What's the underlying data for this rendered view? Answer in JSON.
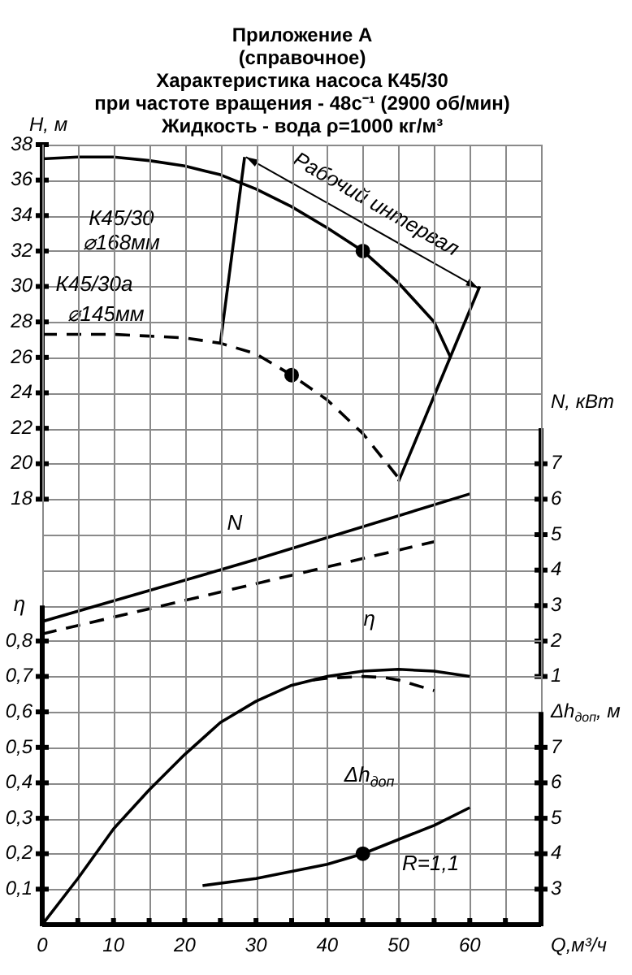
{
  "chart_data": [
    {
      "type": "line",
      "title": "Приложение А\n(справочное)\nХарактеристика насоса К45/30\nпри частоте вращения - 48с⁻¹ (2900 об/мин)\nЖидкость - вода ρ=1000 кг/м³",
      "ylabel": "H, м",
      "y2label": "N, кВт",
      "xlim": [
        0,
        70
      ],
      "xticks": [
        0,
        10,
        20,
        30,
        40,
        50,
        60
      ],
      "ylim": [
        8,
        38
      ],
      "yticks": [
        18,
        20,
        22,
        24,
        26,
        28,
        30,
        32,
        34,
        36,
        38
      ],
      "y2lim": [
        1,
        16
      ],
      "y2ticks": [
        1,
        2,
        3,
        4,
        5,
        6,
        7
      ],
      "tick_labels": "y",
      "grid": true,
      "series": [
        {
          "type": "line",
          "color": "#000000",
          "line_style": "solid",
          "x": [
            0,
            5,
            10,
            15,
            20,
            25,
            30,
            35,
            40,
            45,
            50,
            55,
            57.3
          ],
          "values": [
            37.2,
            37.3,
            37.3,
            37.1,
            36.8,
            36.3,
            35.5,
            34.5,
            33.3,
            32,
            30.2,
            28,
            26
          ]
        },
        {
          "type": "line",
          "color": "#000000",
          "line_style": "dashed",
          "x": [
            0,
            5,
            10,
            15,
            20,
            25,
            30,
            35,
            40,
            45,
            50
          ],
          "values": [
            27.3,
            27.3,
            27.3,
            27.2,
            27.1,
            26.8,
            26.2,
            25,
            23.6,
            21.7,
            19.2
          ]
        },
        {
          "type": "line",
          "color": "#000000",
          "line_style": "solid",
          "x": [
            25,
            28.4
          ],
          "values": [
            26.8,
            37.3
          ]
        },
        {
          "type": "line",
          "color": "#000000",
          "line_style": "solid",
          "x": [
            50,
            61.4
          ],
          "values": [
            19,
            30
          ]
        },
        {
          "type": "line",
          "axis": "y2",
          "color": "#000000",
          "line_style": "solid",
          "x": [
            0,
            30,
            60
          ],
          "values": [
            2.55,
            4.3,
            6.15
          ]
        },
        {
          "type": "line",
          "axis": "y2",
          "color": "#000000",
          "line_style": "dashed",
          "x": [
            0,
            55
          ],
          "values": [
            2.2,
            4.8
          ]
        },
        {
          "type": "scatter",
          "color": "#000000",
          "marker": "circle",
          "x": [
            45,
            35
          ],
          "values": [
            32,
            25
          ]
        }
      ],
      "annotations": [
        "К45/30",
        "⌀168мм",
        "К45/30а",
        "⌀145мм",
        "Рабочий интервал",
        "N"
      ]
    },
    {
      "type": "line",
      "xlabel": "Q,м³/ч",
      "ylabel": "η",
      "y2label": "Δh$_{доп}$, м",
      "xlim": [
        0,
        70
      ],
      "xticks": [
        0,
        {
          "value": 5,
          "label": null
        },
        10,
        {
          "value": 15,
          "label": null
        },
        20,
        {
          "value": 25,
          "label": null
        },
        30,
        {
          "value": 35,
          "label": null
        },
        40,
        {
          "value": 45,
          "label": null
        },
        50,
        {
          "value": 55,
          "label": null
        },
        60,
        {
          "value": 65,
          "label": null
        },
        {
          "value": 70,
          "label": null
        }
      ],
      "ylim": [
        0,
        2.2
      ],
      "yticks": [
        {
          "value": 0.1,
          "label": "0,1"
        },
        {
          "value": 0.2,
          "label": "0,2"
        },
        {
          "value": 0.3,
          "label": "0,3"
        },
        {
          "value": 0.4,
          "label": "0,4"
        },
        {
          "value": 0.5,
          "label": "0,5"
        },
        {
          "value": 0.6,
          "label": "0,6"
        },
        {
          "value": 0.7,
          "label": "0,7"
        },
        {
          "value": 0.8,
          "label": "0,8"
        }
      ],
      "y2lim": [
        2,
        24
      ],
      "y2ticks": [
        3,
        4,
        5,
        6,
        7
      ],
      "grid": true,
      "series": [
        {
          "type": "line",
          "color": "#000000",
          "line_style": "solid",
          "x": [
            0,
            5,
            10,
            15,
            20,
            25,
            30,
            35,
            40,
            45,
            50,
            55,
            60
          ],
          "values": [
            0,
            0.13,
            0.27,
            0.38,
            0.48,
            0.57,
            0.63,
            0.675,
            0.7,
            0.715,
            0.72,
            0.715,
            0.7
          ]
        },
        {
          "type": "line",
          "color": "#000000",
          "line_style": "dashed",
          "x": [
            38,
            40,
            45,
            48,
            50,
            55
          ],
          "values": [
            0.69,
            0.695,
            0.7,
            0.697,
            0.69,
            0.66
          ]
        },
        {
          "type": "line",
          "axis": "y2",
          "color": "#000000",
          "line_style": "solid",
          "x": [
            22.5,
            30,
            35,
            40,
            45,
            50,
            55,
            60
          ],
          "values": [
            3.1,
            3.3,
            3.5,
            3.7,
            4,
            4.4,
            4.8,
            5.3
          ]
        },
        {
          "type": "scatter",
          "axis": "y2",
          "color": "#000000",
          "marker": "circle",
          "x": [
            45
          ],
          "values": [
            4
          ]
        }
      ],
      "annotations": [
        "η",
        "Δh$_{доп}$",
        "R=1,1"
      ]
    }
  ]
}
